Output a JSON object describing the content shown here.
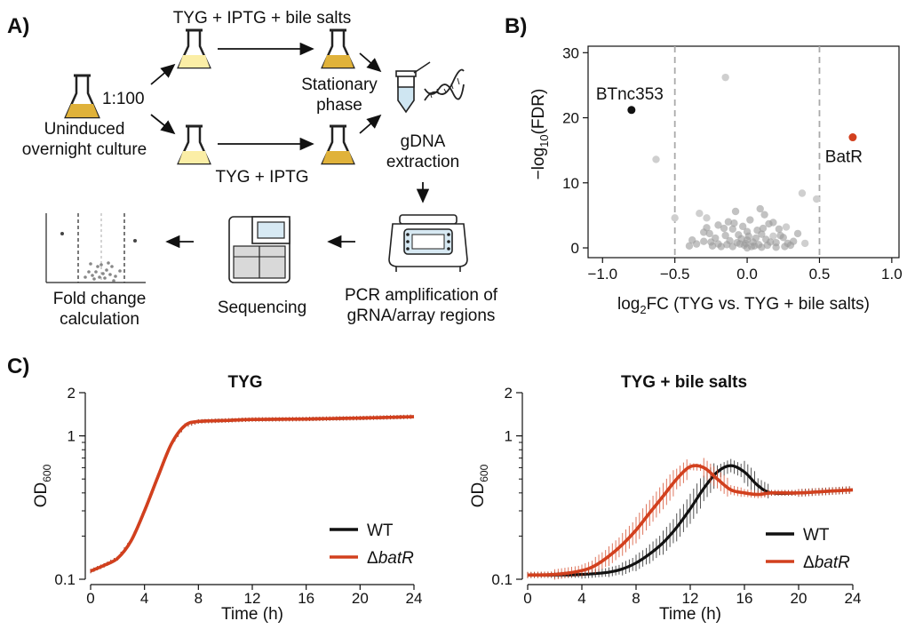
{
  "panels": {
    "a": "A)",
    "b": "B)",
    "c": "C)"
  },
  "panel_a": {
    "flask_left_dilution": "1:100",
    "uninduced_line1": "Uninduced",
    "uninduced_line2": "overnight culture",
    "condition_top": "TYG + IPTG + bile salts",
    "condition_bottom": "TYG + IPTG",
    "stationary_line1": "Stationary",
    "stationary_line2": "phase",
    "gdna_line1": "gDNA",
    "gdna_line2": "extraction",
    "pcr_line1": "PCR amplification of",
    "pcr_line2": "gRNA/array regions",
    "sequencing": "Sequencing",
    "foldchange_line1": "Fold change",
    "foldchange_line2": "calculation",
    "colors": {
      "culture": "#e0b23a",
      "culture_light": "#fbeea6",
      "outline": "#222222"
    }
  },
  "chart_data": [
    {
      "id": "volcano",
      "type": "scatter",
      "xlabel": "log2FC (TYG vs. TYG + bile salts)",
      "ylabel": "-log10(FDR)",
      "xlim": [
        -1.1,
        1.05
      ],
      "ylim": [
        -1.5,
        31
      ],
      "xticks": [
        "−1.0",
        "−0.5",
        "0.0",
        "0.5",
        "1.0"
      ],
      "yticks": [
        "0",
        "10",
        "20",
        "30"
      ],
      "threshold_lines": [
        -0.5,
        0.5
      ],
      "highlights": [
        {
          "label": "BTnc353",
          "x": -0.8,
          "y": 21.2,
          "color": "#111111"
        },
        {
          "label": "BatR",
          "x": 0.73,
          "y": 17.0,
          "color": "#d2401e"
        }
      ],
      "light_points": [
        [
          -0.15,
          26.2
        ],
        [
          -0.63,
          13.6
        ],
        [
          -0.5,
          4.6
        ],
        [
          0.48,
          7.5
        ],
        [
          0.38,
          8.4
        ],
        [
          -0.33,
          5.3
        ],
        [
          -0.28,
          4.6
        ],
        [
          0.27,
          3.2
        ],
        [
          0.18,
          1.8
        ],
        [
          0.4,
          0.7
        ]
      ],
      "points": [
        [
          -0.2,
          3.5
        ],
        [
          -0.1,
          2.9
        ],
        [
          0.0,
          1.2
        ],
        [
          0.1,
          2.1
        ],
        [
          -0.05,
          0.6
        ],
        [
          0.05,
          0.3
        ],
        [
          -0.15,
          1.9
        ],
        [
          0.12,
          5.1
        ],
        [
          -0.25,
          0.9
        ],
        [
          0.2,
          0.8
        ],
        [
          -0.3,
          2.4
        ],
        [
          0.15,
          3.7
        ],
        [
          0.02,
          4.3
        ],
        [
          -0.08,
          5.6
        ],
        [
          0.08,
          0.5
        ],
        [
          -0.02,
          0.4
        ],
        [
          0.25,
          1.6
        ],
        [
          -0.18,
          0.2
        ],
        [
          0.3,
          0.4
        ],
        [
          -0.35,
          0.6
        ],
        [
          -0.12,
          1.1
        ],
        [
          0.0,
          2.5
        ],
        [
          0.06,
          1.5
        ],
        [
          -0.06,
          2.0
        ],
        [
          0.16,
          0.9
        ],
        [
          -0.22,
          1.5
        ],
        [
          0.22,
          2.9
        ],
        [
          -0.28,
          3.1
        ],
        [
          0.32,
          1.0
        ],
        [
          -0.4,
          0.3
        ],
        [
          0.1,
          0.1
        ],
        [
          -0.1,
          0.2
        ],
        [
          0.0,
          0.0
        ],
        [
          0.04,
          0.9
        ],
        [
          -0.04,
          1.4
        ],
        [
          0.18,
          3.9
        ],
        [
          -0.16,
          3.0
        ],
        [
          0.26,
          0.2
        ],
        [
          -0.24,
          0.3
        ],
        [
          0.09,
          6.0
        ],
        [
          -0.03,
          3.3
        ],
        [
          0.13,
          1.3
        ],
        [
          -0.13,
          4.0
        ],
        [
          0.35,
          2.2
        ],
        [
          -0.38,
          1.2
        ],
        [
          0.07,
          2.7
        ],
        [
          -0.07,
          0.8
        ],
        [
          0.2,
          0.1
        ],
        [
          -0.2,
          0.6
        ],
        [
          0.01,
          1.8
        ],
        [
          0.28,
          0.7
        ],
        [
          -0.3,
          1.0
        ],
        [
          0.14,
          0.4
        ],
        [
          -0.14,
          0.5
        ],
        [
          0.23,
          1.9
        ],
        [
          -0.26,
          2.2
        ],
        [
          0.03,
          0.2
        ],
        [
          -0.01,
          0.7
        ],
        [
          0.11,
          3.0
        ],
        [
          -0.09,
          3.8
        ]
      ]
    },
    {
      "id": "growth_tyg",
      "type": "line",
      "title": "TYG",
      "xlabel": "Time (h)",
      "ylabel": "OD600",
      "yscale": "log",
      "ylim": [
        0.1,
        2
      ],
      "xlim": [
        0,
        24
      ],
      "xticks": [
        "0",
        "4",
        "8",
        "12",
        "16",
        "20",
        "24"
      ],
      "yticks": [
        "0.1",
        "1",
        "2"
      ],
      "series": [
        {
          "name": "WT",
          "color": "#111111",
          "x": [
            0,
            1,
            2,
            3,
            4,
            5,
            6,
            7,
            8,
            10,
            12,
            16,
            20,
            24
          ],
          "y": [
            0.114,
            0.125,
            0.14,
            0.185,
            0.3,
            0.52,
            0.88,
            1.18,
            1.26,
            1.28,
            1.3,
            1.31,
            1.33,
            1.36
          ]
        },
        {
          "name": "ΔbatR",
          "color": "#d2401e",
          "x": [
            0,
            1,
            2,
            3,
            4,
            5,
            6,
            7,
            8,
            10,
            12,
            16,
            20,
            24
          ],
          "y": [
            0.114,
            0.125,
            0.14,
            0.185,
            0.3,
            0.52,
            0.88,
            1.18,
            1.26,
            1.28,
            1.3,
            1.31,
            1.33,
            1.36
          ]
        }
      ]
    },
    {
      "id": "growth_bile",
      "type": "line",
      "title": "TYG  + bile salts",
      "xlabel": "Time (h)",
      "ylabel": "OD600",
      "yscale": "log",
      "ylim": [
        0.1,
        2
      ],
      "xlim": [
        0,
        24
      ],
      "xticks": [
        "0",
        "4",
        "8",
        "12",
        "16",
        "20",
        "24"
      ],
      "yticks": [
        "0.1",
        "1",
        "2"
      ],
      "series": [
        {
          "name": "WT",
          "color": "#111111",
          "x": [
            0,
            2,
            4,
            6,
            7,
            8,
            9,
            10,
            11,
            12,
            13,
            14,
            15,
            16,
            17,
            18,
            20,
            22,
            24
          ],
          "y": [
            0.107,
            0.107,
            0.108,
            0.112,
            0.118,
            0.13,
            0.15,
            0.18,
            0.23,
            0.31,
            0.43,
            0.56,
            0.62,
            0.56,
            0.45,
            0.4,
            0.4,
            0.41,
            0.42
          ]
        },
        {
          "name": "ΔbatR",
          "color": "#d2401e",
          "x": [
            0,
            2,
            4,
            5,
            6,
            7,
            8,
            9,
            10,
            11,
            12,
            13,
            14,
            15,
            16,
            17,
            18,
            20,
            22,
            24
          ],
          "y": [
            0.107,
            0.108,
            0.115,
            0.125,
            0.145,
            0.175,
            0.22,
            0.29,
            0.38,
            0.5,
            0.61,
            0.6,
            0.5,
            0.42,
            0.4,
            0.39,
            0.4,
            0.4,
            0.41,
            0.42
          ]
        }
      ]
    }
  ]
}
